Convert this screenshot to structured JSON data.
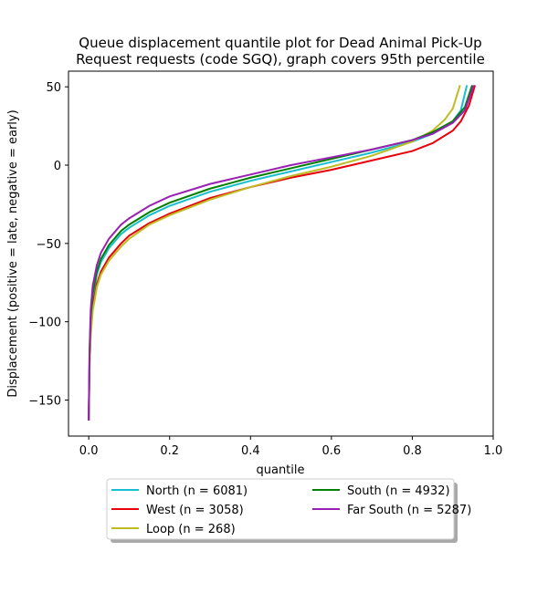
{
  "chart_data": {
    "type": "line",
    "title_line1": "Queue displacement quantile plot for Dead Animal Pick-Up",
    "title_line2": "Request  requests (code SGQ), graph covers 95th percentile",
    "xlabel": "quantile",
    "ylabel": "Displacement (positive = late, negative = early)",
    "xlim": [
      -0.05,
      1.0
    ],
    "ylim": [
      -173,
      60
    ],
    "xticks": [
      0.0,
      0.2,
      0.4,
      0.6,
      0.8,
      1.0
    ],
    "xtick_labels": [
      "0.0",
      "0.2",
      "0.4",
      "0.6",
      "0.8",
      "1.0"
    ],
    "yticks": [
      50,
      0,
      -50,
      -100,
      -150
    ],
    "ytick_labels": [
      "50",
      "0",
      "−50",
      "−100",
      "−150"
    ],
    "grid": false,
    "legend_position": "below",
    "series": [
      {
        "name": "North (n = 6081)",
        "color": "#17becf",
        "points": [
          [
            0.0,
            -163
          ],
          [
            0.002,
            -125
          ],
          [
            0.005,
            -100
          ],
          [
            0.01,
            -85
          ],
          [
            0.02,
            -70
          ],
          [
            0.03,
            -62
          ],
          [
            0.05,
            -53
          ],
          [
            0.08,
            -44
          ],
          [
            0.1,
            -40
          ],
          [
            0.15,
            -32
          ],
          [
            0.2,
            -26
          ],
          [
            0.3,
            -17
          ],
          [
            0.4,
            -10
          ],
          [
            0.5,
            -4
          ],
          [
            0.6,
            2
          ],
          [
            0.7,
            8
          ],
          [
            0.8,
            15
          ],
          [
            0.85,
            20
          ],
          [
            0.9,
            28
          ],
          [
            0.92,
            35
          ],
          [
            0.935,
            51
          ]
        ]
      },
      {
        "name": "West (n = 3058)",
        "color": "#e8000b",
        "points": [
          [
            0.0,
            -163
          ],
          [
            0.002,
            -128
          ],
          [
            0.005,
            -105
          ],
          [
            0.01,
            -90
          ],
          [
            0.02,
            -76
          ],
          [
            0.03,
            -68
          ],
          [
            0.05,
            -59
          ],
          [
            0.08,
            -50
          ],
          [
            0.1,
            -45
          ],
          [
            0.15,
            -37
          ],
          [
            0.2,
            -31
          ],
          [
            0.3,
            -21
          ],
          [
            0.4,
            -14
          ],
          [
            0.5,
            -8
          ],
          [
            0.6,
            -3
          ],
          [
            0.7,
            3
          ],
          [
            0.8,
            9
          ],
          [
            0.85,
            14
          ],
          [
            0.9,
            22
          ],
          [
            0.92,
            28
          ],
          [
            0.94,
            38
          ],
          [
            0.955,
            51
          ]
        ]
      },
      {
        "name": "Loop (n = 268)",
        "color": "#bcbd22",
        "points": [
          [
            0.0,
            -163
          ],
          [
            0.002,
            -130
          ],
          [
            0.005,
            -108
          ],
          [
            0.01,
            -93
          ],
          [
            0.02,
            -78
          ],
          [
            0.03,
            -70
          ],
          [
            0.05,
            -61
          ],
          [
            0.08,
            -52
          ],
          [
            0.1,
            -47
          ],
          [
            0.15,
            -38
          ],
          [
            0.2,
            -32
          ],
          [
            0.3,
            -22
          ],
          [
            0.4,
            -14
          ],
          [
            0.5,
            -7
          ],
          [
            0.6,
            -1
          ],
          [
            0.7,
            6
          ],
          [
            0.8,
            15
          ],
          [
            0.85,
            22
          ],
          [
            0.88,
            29
          ],
          [
            0.9,
            36
          ],
          [
            0.918,
            51
          ]
        ]
      },
      {
        "name": "South (n = 4932)",
        "color": "#008000",
        "points": [
          [
            0.0,
            -163
          ],
          [
            0.002,
            -122
          ],
          [
            0.005,
            -97
          ],
          [
            0.01,
            -82
          ],
          [
            0.02,
            -68
          ],
          [
            0.03,
            -60
          ],
          [
            0.05,
            -51
          ],
          [
            0.08,
            -42
          ],
          [
            0.1,
            -38
          ],
          [
            0.15,
            -30
          ],
          [
            0.2,
            -24
          ],
          [
            0.3,
            -15
          ],
          [
            0.4,
            -8
          ],
          [
            0.5,
            -2
          ],
          [
            0.6,
            4
          ],
          [
            0.7,
            10
          ],
          [
            0.8,
            16
          ],
          [
            0.85,
            21
          ],
          [
            0.9,
            28
          ],
          [
            0.93,
            37
          ],
          [
            0.948,
            51
          ]
        ]
      },
      {
        "name": "Far South (n = 5287)",
        "color": "#9a1fb5",
        "points": [
          [
            0.0,
            -163
          ],
          [
            0.002,
            -118
          ],
          [
            0.005,
            -92
          ],
          [
            0.01,
            -77
          ],
          [
            0.02,
            -64
          ],
          [
            0.03,
            -56
          ],
          [
            0.05,
            -47
          ],
          [
            0.08,
            -38
          ],
          [
            0.1,
            -34
          ],
          [
            0.15,
            -26
          ],
          [
            0.2,
            -20
          ],
          [
            0.3,
            -12
          ],
          [
            0.4,
            -6
          ],
          [
            0.5,
            0
          ],
          [
            0.6,
            5
          ],
          [
            0.7,
            10
          ],
          [
            0.8,
            16
          ],
          [
            0.85,
            20
          ],
          [
            0.9,
            27
          ],
          [
            0.93,
            35
          ],
          [
            0.952,
            51
          ]
        ]
      }
    ]
  }
}
